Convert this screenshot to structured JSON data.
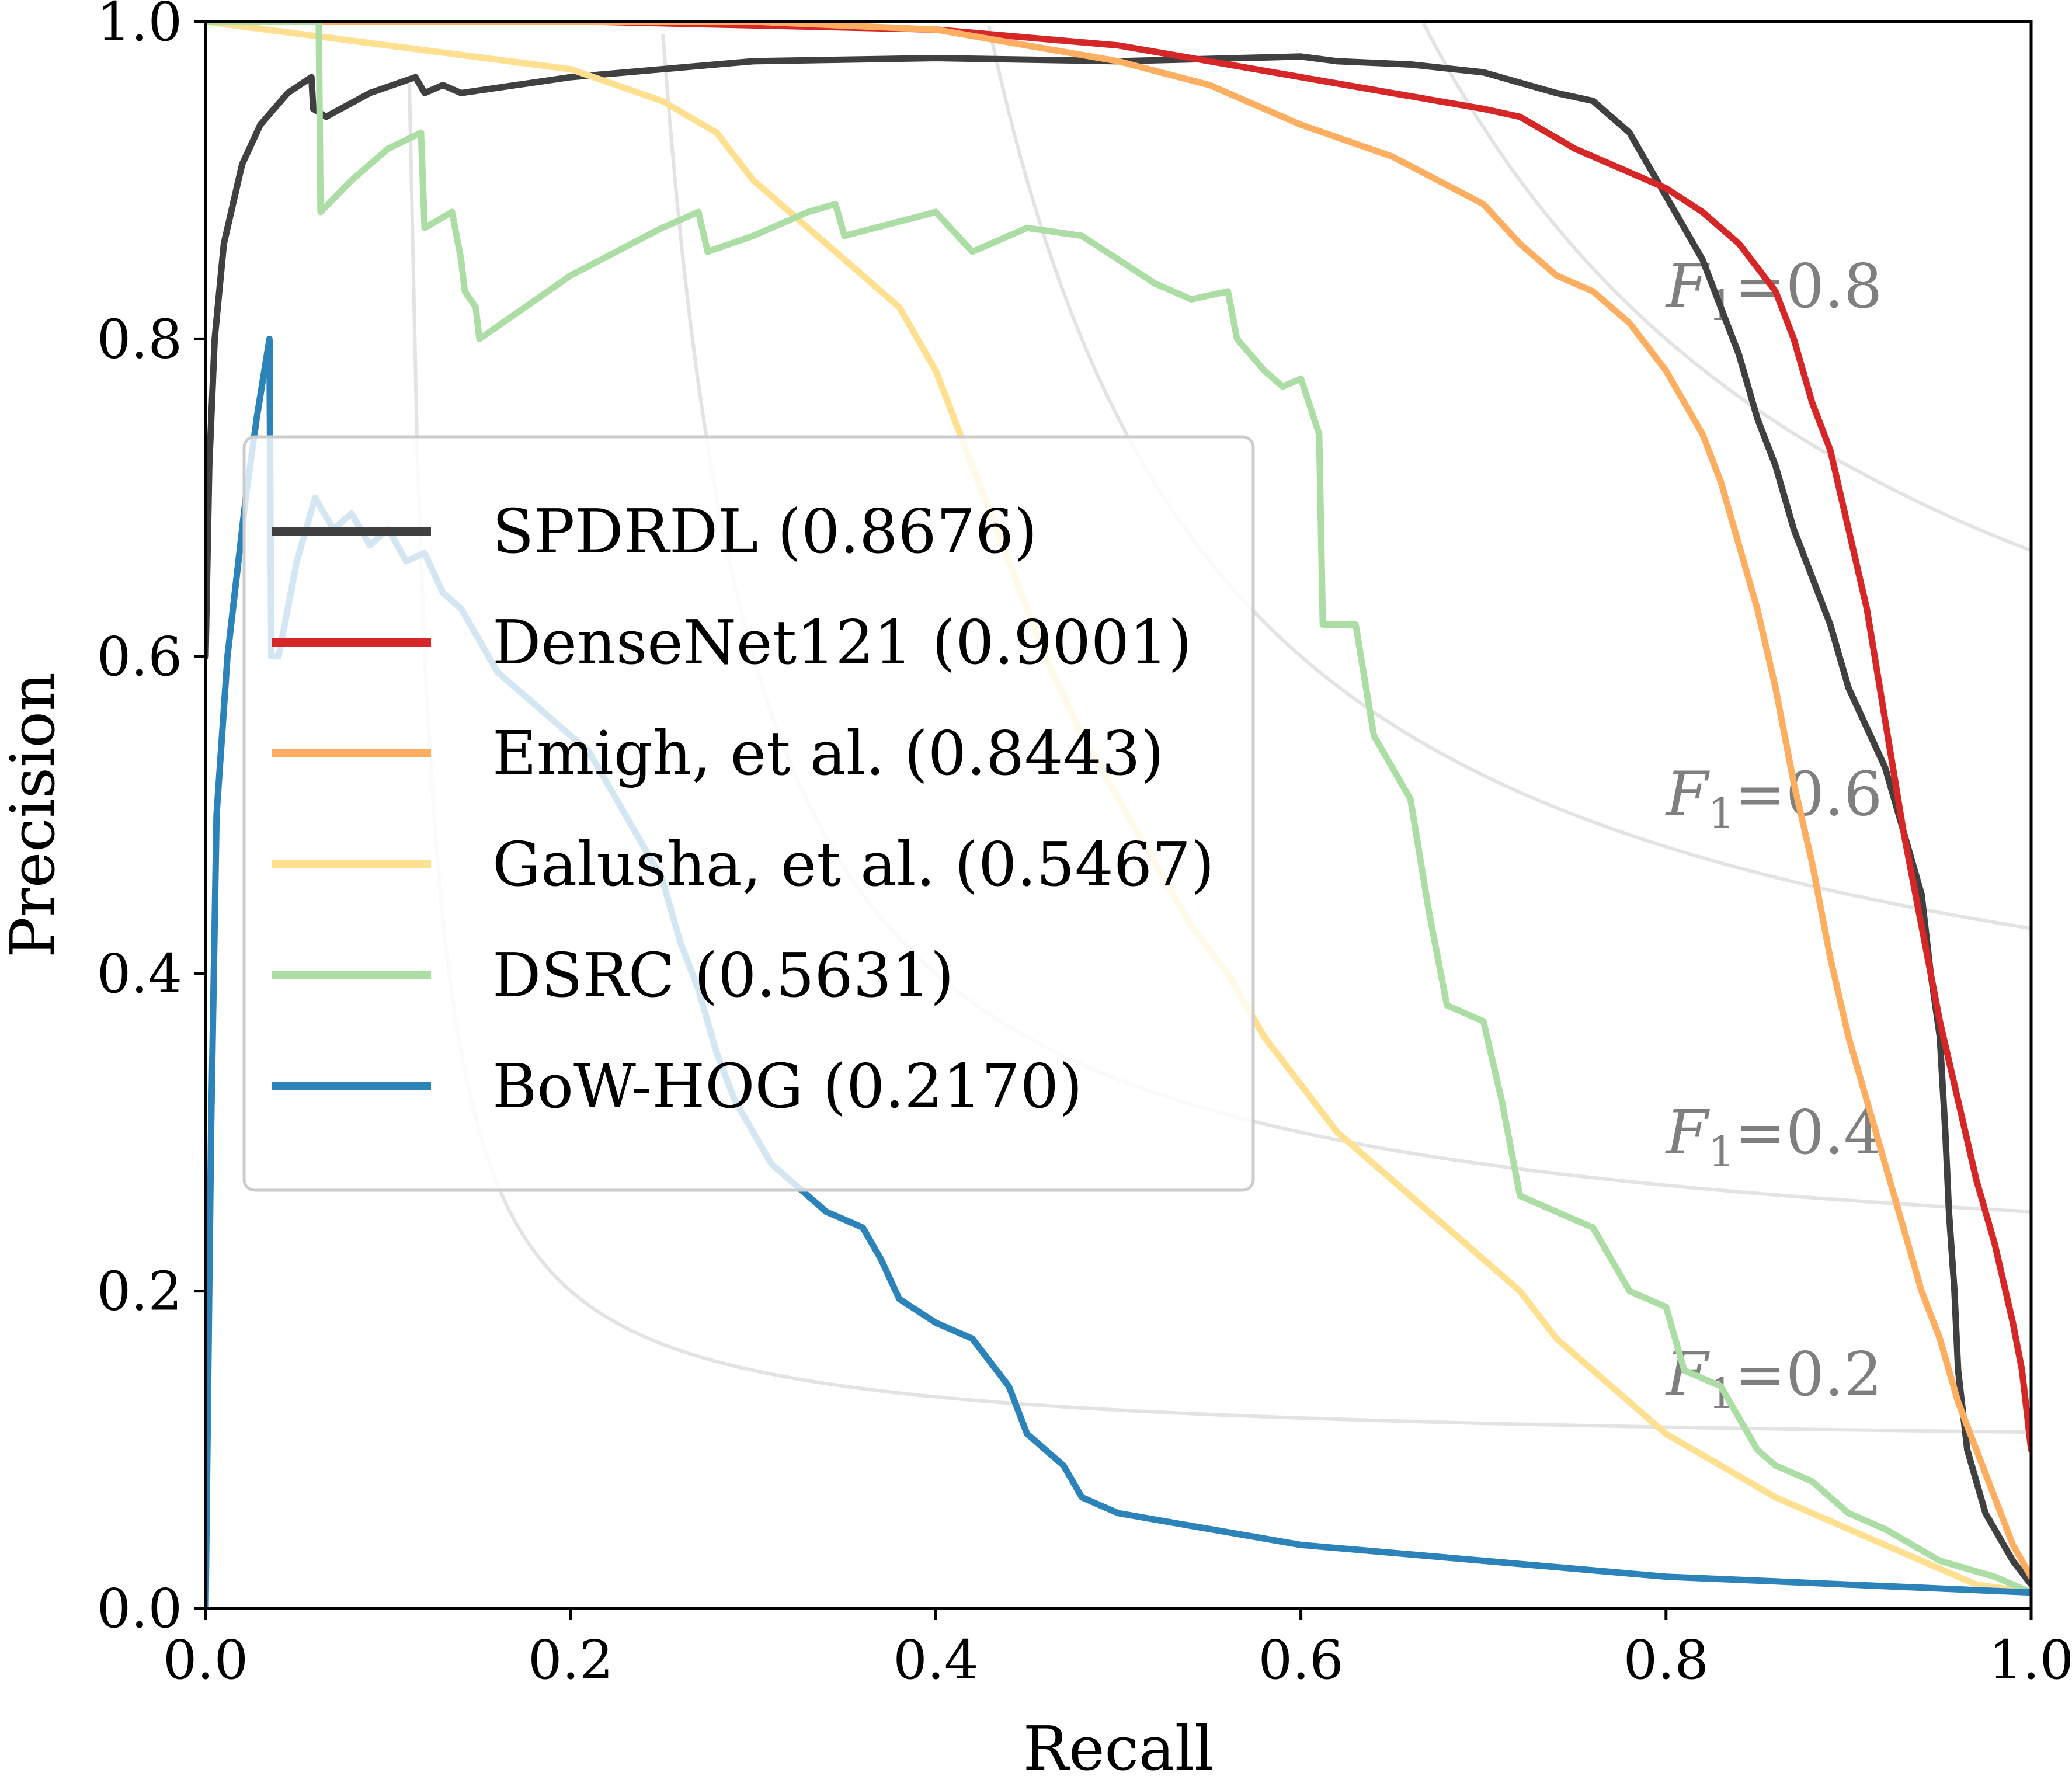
{
  "chart_data": {
    "type": "line",
    "title": "",
    "xlabel": "Recall",
    "ylabel": "Precision",
    "xlim": [
      0.0,
      1.0
    ],
    "ylim": [
      0.0,
      1.0
    ],
    "xticks": [
      "0.0",
      "0.2",
      "0.4",
      "0.6",
      "0.8",
      "1.0"
    ],
    "yticks": [
      "0.0",
      "0.2",
      "0.4",
      "0.6",
      "0.8",
      "1.0"
    ],
    "grid": false,
    "legend_position": "center-left",
    "iso_f1_curves": [
      {
        "f1": 0.2,
        "label_italic": "F",
        "label_sub": "1",
        "label_rest": "=0.2"
      },
      {
        "f1": 0.4,
        "label_italic": "F",
        "label_sub": "1",
        "label_rest": "=0.4"
      },
      {
        "f1": 0.6,
        "label_italic": "F",
        "label_sub": "1",
        "label_rest": "=0.6"
      },
      {
        "f1": 0.8,
        "label_italic": "F",
        "label_sub": "1",
        "label_rest": "=0.8"
      }
    ],
    "series": [
      {
        "name": "SPDRDL (0.8676)",
        "color": "#404040",
        "points": [
          [
            0.0,
            0.6
          ],
          [
            0.002,
            0.72
          ],
          [
            0.005,
            0.8
          ],
          [
            0.01,
            0.86
          ],
          [
            0.02,
            0.91
          ],
          [
            0.03,
            0.935
          ],
          [
            0.045,
            0.955
          ],
          [
            0.058,
            0.965
          ],
          [
            0.059,
            0.945
          ],
          [
            0.066,
            0.94
          ],
          [
            0.09,
            0.955
          ],
          [
            0.115,
            0.965
          ],
          [
            0.12,
            0.955
          ],
          [
            0.13,
            0.96
          ],
          [
            0.14,
            0.955
          ],
          [
            0.2,
            0.965
          ],
          [
            0.3,
            0.975
          ],
          [
            0.4,
            0.977
          ],
          [
            0.5,
            0.975
          ],
          [
            0.6,
            0.978
          ],
          [
            0.62,
            0.975
          ],
          [
            0.66,
            0.973
          ],
          [
            0.7,
            0.968
          ],
          [
            0.74,
            0.955
          ],
          [
            0.76,
            0.95
          ],
          [
            0.78,
            0.93
          ],
          [
            0.79,
            0.91
          ],
          [
            0.8,
            0.89
          ],
          [
            0.81,
            0.87
          ],
          [
            0.82,
            0.85
          ],
          [
            0.83,
            0.82
          ],
          [
            0.84,
            0.79
          ],
          [
            0.85,
            0.75
          ],
          [
            0.86,
            0.72
          ],
          [
            0.87,
            0.68
          ],
          [
            0.88,
            0.65
          ],
          [
            0.89,
            0.62
          ],
          [
            0.9,
            0.58
          ],
          [
            0.91,
            0.555
          ],
          [
            0.92,
            0.53
          ],
          [
            0.93,
            0.49
          ],
          [
            0.94,
            0.45
          ],
          [
            0.945,
            0.4
          ],
          [
            0.95,
            0.36
          ],
          [
            0.953,
            0.3
          ],
          [
            0.955,
            0.25
          ],
          [
            0.958,
            0.2
          ],
          [
            0.96,
            0.15
          ],
          [
            0.965,
            0.1
          ],
          [
            0.975,
            0.06
          ],
          [
            0.99,
            0.03
          ],
          [
            1.0,
            0.015
          ]
        ]
      },
      {
        "name": "DenseNet121 (0.9001)",
        "color": "#d62728",
        "points": [
          [
            0.21,
            1.0
          ],
          [
            0.4,
            0.995
          ],
          [
            0.45,
            0.99
          ],
          [
            0.5,
            0.985
          ],
          [
            0.55,
            0.975
          ],
          [
            0.6,
            0.965
          ],
          [
            0.65,
            0.955
          ],
          [
            0.7,
            0.945
          ],
          [
            0.72,
            0.94
          ],
          [
            0.75,
            0.92
          ],
          [
            0.78,
            0.905
          ],
          [
            0.8,
            0.895
          ],
          [
            0.82,
            0.88
          ],
          [
            0.84,
            0.86
          ],
          [
            0.86,
            0.83
          ],
          [
            0.87,
            0.8
          ],
          [
            0.88,
            0.76
          ],
          [
            0.89,
            0.73
          ],
          [
            0.9,
            0.68
          ],
          [
            0.91,
            0.63
          ],
          [
            0.92,
            0.56
          ],
          [
            0.93,
            0.49
          ],
          [
            0.94,
            0.43
          ],
          [
            0.95,
            0.37
          ],
          [
            0.96,
            0.32
          ],
          [
            0.97,
            0.27
          ],
          [
            0.98,
            0.23
          ],
          [
            0.99,
            0.18
          ],
          [
            0.995,
            0.15
          ],
          [
            1.0,
            0.1
          ]
        ]
      },
      {
        "name": "Emigh, et al. (0.8443)",
        "color": "#fdae61",
        "points": [
          [
            0.0,
            1.0
          ],
          [
            0.3,
            1.0
          ],
          [
            0.4,
            0.995
          ],
          [
            0.45,
            0.985
          ],
          [
            0.5,
            0.975
          ],
          [
            0.55,
            0.96
          ],
          [
            0.6,
            0.935
          ],
          [
            0.65,
            0.915
          ],
          [
            0.7,
            0.885
          ],
          [
            0.72,
            0.86
          ],
          [
            0.74,
            0.84
          ],
          [
            0.76,
            0.83
          ],
          [
            0.78,
            0.81
          ],
          [
            0.8,
            0.78
          ],
          [
            0.81,
            0.76
          ],
          [
            0.82,
            0.74
          ],
          [
            0.83,
            0.71
          ],
          [
            0.84,
            0.67
          ],
          [
            0.85,
            0.63
          ],
          [
            0.86,
            0.58
          ],
          [
            0.87,
            0.52
          ],
          [
            0.88,
            0.47
          ],
          [
            0.89,
            0.41
          ],
          [
            0.9,
            0.36
          ],
          [
            0.91,
            0.32
          ],
          [
            0.92,
            0.28
          ],
          [
            0.93,
            0.24
          ],
          [
            0.94,
            0.2
          ],
          [
            0.95,
            0.17
          ],
          [
            0.96,
            0.13
          ],
          [
            0.97,
            0.1
          ],
          [
            0.98,
            0.07
          ],
          [
            0.99,
            0.04
          ],
          [
            1.0,
            0.02
          ]
        ]
      },
      {
        "name": "Galusha, et al. (0.5467)",
        "color": "#fee090",
        "points": [
          [
            0.0,
            1.0
          ],
          [
            0.1,
            0.985
          ],
          [
            0.2,
            0.97
          ],
          [
            0.25,
            0.95
          ],
          [
            0.28,
            0.93
          ],
          [
            0.3,
            0.9
          ],
          [
            0.32,
            0.88
          ],
          [
            0.34,
            0.86
          ],
          [
            0.36,
            0.84
          ],
          [
            0.38,
            0.82
          ],
          [
            0.4,
            0.78
          ],
          [
            0.42,
            0.72
          ],
          [
            0.44,
            0.66
          ],
          [
            0.46,
            0.6
          ],
          [
            0.48,
            0.55
          ],
          [
            0.5,
            0.51
          ],
          [
            0.52,
            0.47
          ],
          [
            0.54,
            0.43
          ],
          [
            0.56,
            0.4
          ],
          [
            0.58,
            0.36
          ],
          [
            0.6,
            0.33
          ],
          [
            0.62,
            0.3
          ],
          [
            0.64,
            0.28
          ],
          [
            0.66,
            0.26
          ],
          [
            0.68,
            0.24
          ],
          [
            0.7,
            0.22
          ],
          [
            0.72,
            0.2
          ],
          [
            0.74,
            0.17
          ],
          [
            0.76,
            0.15
          ],
          [
            0.78,
            0.13
          ],
          [
            0.8,
            0.11
          ],
          [
            0.83,
            0.09
          ],
          [
            0.86,
            0.07
          ],
          [
            0.9,
            0.05
          ],
          [
            0.94,
            0.03
          ],
          [
            0.97,
            0.015
          ],
          [
            1.0,
            0.01
          ]
        ]
      },
      {
        "name": "DSRC (0.5631)",
        "color": "#abdda4",
        "points": [
          [
            0.0,
            1.0
          ],
          [
            0.062,
            1.0
          ],
          [
            0.063,
            0.88
          ],
          [
            0.08,
            0.9
          ],
          [
            0.1,
            0.92
          ],
          [
            0.118,
            0.93
          ],
          [
            0.12,
            0.87
          ],
          [
            0.135,
            0.88
          ],
          [
            0.14,
            0.85
          ],
          [
            0.142,
            0.83
          ],
          [
            0.148,
            0.82
          ],
          [
            0.15,
            0.8
          ],
          [
            0.2,
            0.84
          ],
          [
            0.25,
            0.87
          ],
          [
            0.27,
            0.88
          ],
          [
            0.275,
            0.855
          ],
          [
            0.3,
            0.865
          ],
          [
            0.33,
            0.88
          ],
          [
            0.345,
            0.885
          ],
          [
            0.35,
            0.865
          ],
          [
            0.4,
            0.88
          ],
          [
            0.42,
            0.855
          ],
          [
            0.45,
            0.87
          ],
          [
            0.48,
            0.865
          ],
          [
            0.5,
            0.85
          ],
          [
            0.52,
            0.835
          ],
          [
            0.54,
            0.825
          ],
          [
            0.56,
            0.83
          ],
          [
            0.565,
            0.8
          ],
          [
            0.58,
            0.78
          ],
          [
            0.59,
            0.77
          ],
          [
            0.6,
            0.775
          ],
          [
            0.61,
            0.74
          ],
          [
            0.612,
            0.62
          ],
          [
            0.63,
            0.62
          ],
          [
            0.64,
            0.55
          ],
          [
            0.65,
            0.53
          ],
          [
            0.66,
            0.51
          ],
          [
            0.67,
            0.44
          ],
          [
            0.68,
            0.38
          ],
          [
            0.7,
            0.37
          ],
          [
            0.71,
            0.32
          ],
          [
            0.72,
            0.26
          ],
          [
            0.74,
            0.25
          ],
          [
            0.76,
            0.24
          ],
          [
            0.78,
            0.2
          ],
          [
            0.8,
            0.19
          ],
          [
            0.81,
            0.15
          ],
          [
            0.83,
            0.14
          ],
          [
            0.85,
            0.1
          ],
          [
            0.86,
            0.09
          ],
          [
            0.88,
            0.08
          ],
          [
            0.9,
            0.06
          ],
          [
            0.92,
            0.05
          ],
          [
            0.95,
            0.03
          ],
          [
            0.98,
            0.02
          ],
          [
            1.0,
            0.01
          ]
        ]
      },
      {
        "name": "BoW-HOG (0.2170)",
        "color": "#2b83ba",
        "points": [
          [
            0.0,
            0.0
          ],
          [
            0.003,
            0.3
          ],
          [
            0.006,
            0.5
          ],
          [
            0.012,
            0.6
          ],
          [
            0.022,
            0.7
          ],
          [
            0.028,
            0.75
          ],
          [
            0.035,
            0.8
          ],
          [
            0.036,
            0.6
          ],
          [
            0.04,
            0.6
          ],
          [
            0.05,
            0.66
          ],
          [
            0.06,
            0.7
          ],
          [
            0.07,
            0.68
          ],
          [
            0.08,
            0.69
          ],
          [
            0.09,
            0.67
          ],
          [
            0.1,
            0.68
          ],
          [
            0.11,
            0.66
          ],
          [
            0.12,
            0.665
          ],
          [
            0.13,
            0.64
          ],
          [
            0.14,
            0.63
          ],
          [
            0.15,
            0.61
          ],
          [
            0.16,
            0.59
          ],
          [
            0.17,
            0.58
          ],
          [
            0.18,
            0.57
          ],
          [
            0.19,
            0.56
          ],
          [
            0.2,
            0.55
          ],
          [
            0.21,
            0.54
          ],
          [
            0.22,
            0.52
          ],
          [
            0.23,
            0.5
          ],
          [
            0.24,
            0.48
          ],
          [
            0.25,
            0.46
          ],
          [
            0.26,
            0.42
          ],
          [
            0.27,
            0.39
          ],
          [
            0.28,
            0.35
          ],
          [
            0.29,
            0.32
          ],
          [
            0.3,
            0.3
          ],
          [
            0.31,
            0.28
          ],
          [
            0.32,
            0.27
          ],
          [
            0.33,
            0.26
          ],
          [
            0.34,
            0.25
          ],
          [
            0.35,
            0.245
          ],
          [
            0.36,
            0.24
          ],
          [
            0.37,
            0.22
          ],
          [
            0.38,
            0.195
          ],
          [
            0.4,
            0.18
          ],
          [
            0.42,
            0.17
          ],
          [
            0.43,
            0.155
          ],
          [
            0.44,
            0.14
          ],
          [
            0.45,
            0.11
          ],
          [
            0.47,
            0.09
          ],
          [
            0.48,
            0.07
          ],
          [
            0.5,
            0.06
          ],
          [
            0.55,
            0.05
          ],
          [
            0.6,
            0.04
          ],
          [
            0.65,
            0.035
          ],
          [
            0.7,
            0.03
          ],
          [
            0.8,
            0.02
          ],
          [
            0.9,
            0.015
          ],
          [
            1.0,
            0.01
          ]
        ]
      }
    ]
  }
}
